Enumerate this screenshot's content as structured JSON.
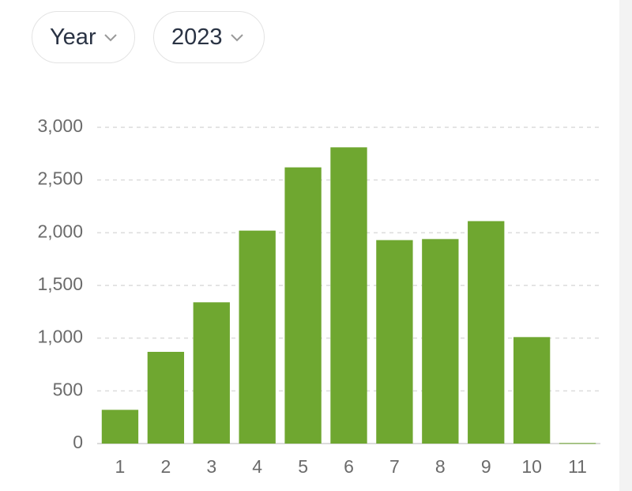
{
  "controls": {
    "period": "Year",
    "year": "2023"
  },
  "chart_data": {
    "type": "bar",
    "categories": [
      "1",
      "2",
      "3",
      "4",
      "5",
      "6",
      "7",
      "8",
      "9",
      "10",
      "11"
    ],
    "values": [
      320,
      870,
      1340,
      2020,
      2620,
      2810,
      1930,
      1940,
      2110,
      1010,
      5
    ],
    "color": "#6fa730",
    "ylim": [
      0,
      3000
    ],
    "yticks": [
      0,
      500,
      {
        "value": 1000,
        "label": "1,000"
      },
      {
        "value": 1500,
        "label": "1,500"
      },
      {
        "value": 2000,
        "label": "2,000"
      },
      {
        "value": 2500,
        "label": "2,500"
      },
      {
        "value": 3000,
        "label": "3,000"
      }
    ],
    "grid": true
  }
}
